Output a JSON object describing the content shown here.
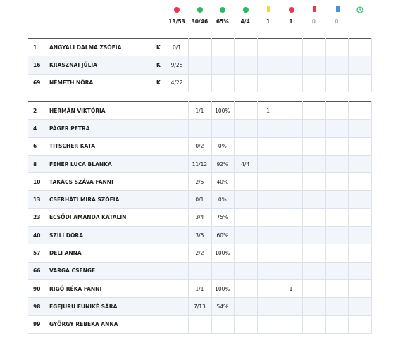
{
  "totals": [
    "13/53",
    "30/46",
    "65%",
    "4/4",
    "1",
    "1",
    "0",
    "0"
  ],
  "goalkeepers": [
    {
      "number": "1",
      "name": "ANGYALI DALMA ZSÓFIA",
      "position": "K",
      "stats": [
        "0/1",
        null,
        null,
        null,
        null,
        null,
        null,
        null,
        null
      ]
    },
    {
      "number": "16",
      "name": "KRASZNAI JÚLIA",
      "position": "K",
      "stats": [
        "9/28",
        null,
        null,
        null,
        null,
        null,
        null,
        null,
        null
      ]
    },
    {
      "number": "69",
      "name": "NÉMETH NÓRA",
      "position": "K",
      "stats": [
        "4/22",
        null,
        null,
        null,
        null,
        null,
        null,
        null,
        null
      ]
    }
  ],
  "players": [
    {
      "number": "2",
      "name": "HERMÁN VIKTÓRIA",
      "stats": [
        null,
        "1/1",
        "100%",
        null,
        "1",
        null,
        null,
        null,
        null
      ]
    },
    {
      "number": "4",
      "name": "PÁGER PETRA",
      "stats": [
        null,
        null,
        null,
        null,
        null,
        null,
        null,
        null,
        null
      ]
    },
    {
      "number": "6",
      "name": "TITSCHER KATA",
      "stats": [
        null,
        "0/2",
        "0%",
        null,
        null,
        null,
        null,
        null,
        null
      ]
    },
    {
      "number": "8",
      "name": "FEHÉR LUCA BLANKA",
      "stats": [
        null,
        "11/12",
        "92%",
        "4/4",
        null,
        null,
        null,
        null,
        null
      ]
    },
    {
      "number": "10",
      "name": "TAKÁCS SZÁVA FANNI",
      "stats": [
        null,
        "2/5",
        "40%",
        null,
        null,
        null,
        null,
        null,
        null
      ]
    },
    {
      "number": "13",
      "name": "CSERHÁTI MIRA SZÓFIA",
      "stats": [
        null,
        "0/1",
        "0%",
        null,
        null,
        null,
        null,
        null,
        null
      ]
    },
    {
      "number": "23",
      "name": "ECSŐDI AMANDA KATALIN",
      "stats": [
        null,
        "3/4",
        "75%",
        null,
        null,
        null,
        null,
        null,
        null
      ]
    },
    {
      "number": "40",
      "name": "SZILI DÓRA",
      "stats": [
        null,
        "3/5",
        "60%",
        null,
        null,
        null,
        null,
        null,
        null
      ]
    },
    {
      "number": "57",
      "name": "DELI ANNA",
      "stats": [
        null,
        "2/2",
        "100%",
        null,
        null,
        null,
        null,
        null,
        null
      ]
    },
    {
      "number": "66",
      "name": "VARGA CSENGE",
      "stats": [
        null,
        null,
        null,
        null,
        null,
        null,
        null,
        null,
        null
      ]
    },
    {
      "number": "90",
      "name": "RIGÓ RÉKA FANNI",
      "stats": [
        null,
        "1/1",
        "100%",
        null,
        null,
        "1",
        null,
        null,
        null
      ]
    },
    {
      "number": "98",
      "name": "EGEJURU EUNIKÉ SÁRA",
      "stats": [
        null,
        "7/13",
        "54%",
        null,
        null,
        null,
        null,
        null,
        null
      ]
    },
    {
      "number": "99",
      "name": "GYÖRGY REBEKA ANNA",
      "stats": [
        null,
        null,
        null,
        null,
        null,
        null,
        null,
        null,
        null
      ]
    }
  ]
}
